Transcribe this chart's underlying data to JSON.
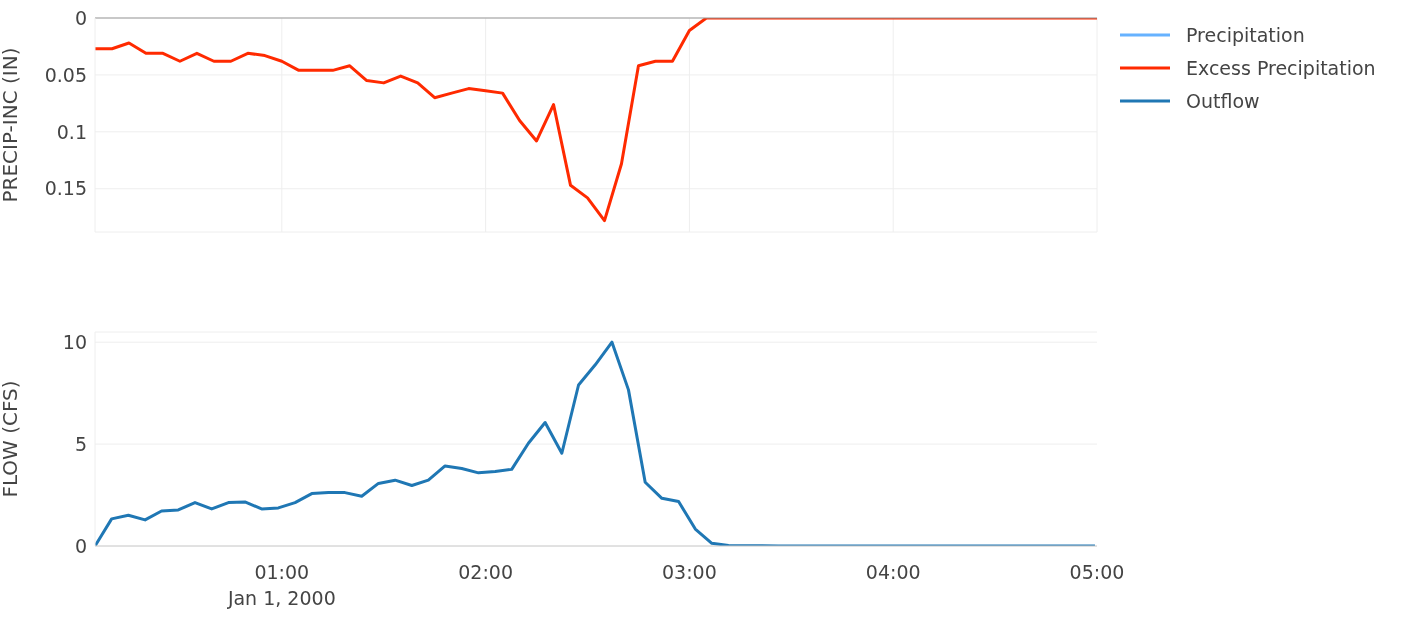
{
  "chart_data": [
    {
      "type": "line",
      "ylabel": "PRECIP-INC (IN)",
      "x": [
        0.0833,
        0.1667,
        0.25,
        0.3333,
        0.4167,
        0.5,
        0.5833,
        0.6667,
        0.75,
        0.8333,
        0.9167,
        1,
        1.0833,
        1.1667,
        1.25,
        1.3333,
        1.4167,
        1.5,
        1.5833,
        1.6667,
        1.75,
        1.8333,
        1.9167,
        2,
        2.0833,
        2.1667,
        2.25,
        2.3333,
        2.4167,
        2.5,
        2.5833,
        2.6667,
        2.75,
        2.8333,
        2.9167,
        3,
        3.0833,
        3.1667,
        3.25,
        3.3333,
        3.4167,
        3.5,
        3.5833,
        3.6667,
        3.75,
        3.8333,
        3.9167,
        4,
        4.0833,
        4.1667,
        4.25,
        4.3333,
        4.4167,
        4.5,
        4.5833,
        4.6667,
        4.75,
        4.8333,
        4.9167,
        5
      ],
      "series": [
        {
          "name": "Precipitation",
          "color": "#66b2ff",
          "values": [
            null,
            null,
            null,
            null,
            null,
            null,
            null,
            null,
            null,
            null,
            null,
            null,
            null,
            null,
            null,
            null,
            null,
            null,
            null,
            null,
            null,
            null,
            null,
            null,
            null,
            null,
            null,
            null,
            null,
            null,
            null,
            null,
            null,
            null,
            null,
            null,
            null,
            null,
            null,
            null,
            null,
            null,
            null,
            null,
            null,
            null,
            null,
            null,
            null,
            null,
            null,
            null,
            null,
            null,
            null,
            null,
            null,
            null,
            null,
            null
          ]
        },
        {
          "name": "Excess Precipitation",
          "color": "#ff2a00",
          "values": [
            0.027,
            0.027,
            0.022,
            0.031,
            0.031,
            0.038,
            0.031,
            0.038,
            0.038,
            0.031,
            0.033,
            0.038,
            0.046,
            0.046,
            0.046,
            0.042,
            0.055,
            0.057,
            0.051,
            0.057,
            0.07,
            0.066,
            0.062,
            0.064,
            0.066,
            0.09,
            0.108,
            0.076,
            0.147,
            0.158,
            0.178,
            0.128,
            0.042,
            0.038,
            0.038,
            0.011,
            0,
            0,
            0,
            0,
            0,
            0,
            0,
            0,
            0,
            0,
            0,
            0,
            0,
            0,
            0,
            0,
            0,
            0,
            0,
            0,
            0,
            0,
            0,
            0
          ]
        }
      ],
      "xlim": [
        0.0833,
        5
      ],
      "xticks": [
        1,
        2,
        3,
        4,
        5
      ],
      "ylim": [
        0.188,
        0
      ],
      "yticks": [
        0,
        0.05,
        0.1,
        0.15
      ],
      "tick_labels": "y",
      "grid": true,
      "legend": "top right",
      "marker": "none",
      "line_style": "solid"
    },
    {
      "type": "line",
      "ylabel": "FLOW (CFS)",
      "series": [
        {
          "name": "Outflow",
          "color": "#1f77b4",
          "x": [
            0.0833,
            0.165,
            0.247,
            0.329,
            0.41,
            0.492,
            0.574,
            0.656,
            0.738,
            0.819,
            0.901,
            0.983,
            1.065,
            1.147,
            1.229,
            1.31,
            1.392,
            1.474,
            1.556,
            1.638,
            1.719,
            1.801,
            1.883,
            1.965,
            2.047,
            2.128,
            2.21,
            2.292,
            2.374,
            2.456,
            2.538,
            2.62,
            2.701,
            2.783,
            2.865,
            2.947,
            3.029,
            3.11,
            3.192,
            3.274,
            3.356,
            3.438,
            3.52,
            3.601,
            3.683,
            3.765,
            3.847,
            3.929,
            4.01,
            4.092,
            4.174,
            4.256,
            4.338,
            4.42,
            4.501,
            4.583,
            4.665,
            4.747,
            4.829,
            4.911,
            4.99
          ],
          "values": [
            0,
            1.33,
            1.51,
            1.28,
            1.72,
            1.77,
            2.13,
            1.82,
            2.13,
            2.16,
            1.82,
            1.87,
            2.13,
            2.57,
            2.62,
            2.62,
            2.44,
            3.07,
            3.23,
            2.97,
            3.23,
            3.93,
            3.8,
            3.59,
            3.66,
            3.76,
            5.04,
            6.06,
            4.55,
            7.9,
            8.89,
            10,
            7.66,
            3.13,
            2.34,
            2.18,
            0.83,
            0.13,
            0.02,
            0.01,
            0.01,
            0,
            0,
            0,
            0,
            0,
            0,
            0,
            0,
            0,
            0,
            0,
            0,
            0,
            0,
            0,
            0,
            0,
            0,
            0,
            0
          ]
        }
      ],
      "xlim": [
        0.0833,
        5
      ],
      "xticks": [
        {
          "value": 1,
          "label": "01:00\nJan 1, 2000"
        },
        {
          "value": 2,
          "label": "02:00"
        },
        {
          "value": 3,
          "label": "03:00"
        },
        {
          "value": 4,
          "label": "04:00"
        },
        {
          "value": 5,
          "label": "05:00"
        }
      ],
      "ylim": [
        0,
        10.5
      ],
      "yticks": [
        0,
        5,
        10
      ],
      "grid": "y",
      "legend": "top right",
      "marker": "none",
      "line_style": "solid"
    }
  ]
}
